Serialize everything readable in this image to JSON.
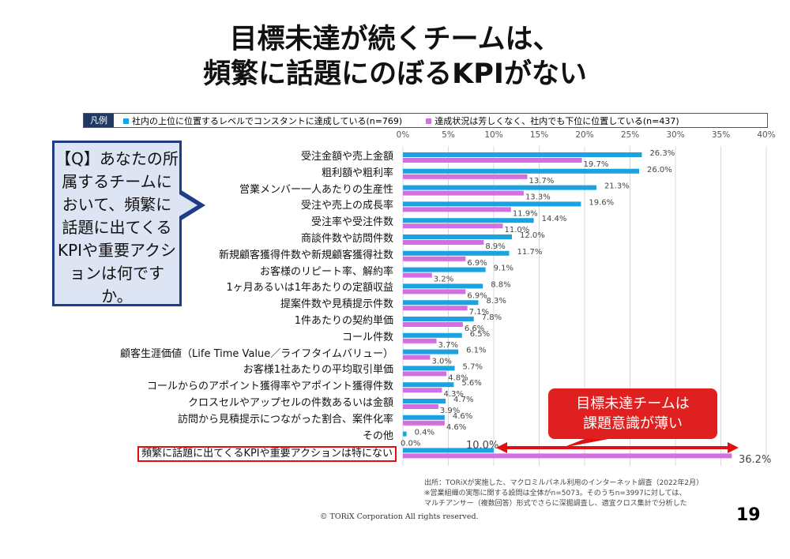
{
  "title": {
    "line1": "目標未達が続くチームは、",
    "line2": "頻繁に話題にのぼるKPIがない"
  },
  "legend": {
    "label": "凡例",
    "series1": "社内の上位に位置するレベルでコンスタントに達成している(n=769)",
    "series2": "達成状況は芳しくなく、社内でも下位に位置している(n=437)"
  },
  "callout": "【Q】あなたの所属するチームにおいて、頻繁に話題に出てくるKPIや重要アクションは何ですか。",
  "annotation": {
    "line1": "目標未達チームは",
    "line2": "課題意識が薄い"
  },
  "note": {
    "line1": "出所：TORiXが実施した、マクロミルパネル利用のインターネット調査（2022年2月）",
    "line2": "※営業組織の実態に関する設問は全体がn=5073。そのうちn=3997に対しては、",
    "line3": "マルチアンサー（複数回答）形式でさらに深掘調査し、適宜クロス集計で分析した"
  },
  "copyright": "© TORiX Corporation All rights reserved.",
  "page_number": "19",
  "chart_data": {
    "type": "bar",
    "orientation": "horizontal",
    "xlim": [
      0,
      40
    ],
    "ticks": [
      "0%",
      "5%",
      "10%",
      "15%",
      "20%",
      "25%",
      "30%",
      "35%",
      "40%"
    ],
    "categories": [
      "受注金額や売上金額",
      "粗利額や粗利率",
      "営業メンバー一人あたりの生産性",
      "受注や売上の成長率",
      "受注率や受注件数",
      "商談件数や訪問件数",
      "新規顧客獲得件数や新規顧客獲得社数",
      "お客様のリピート率、解約率",
      "1ヶ月あるいは1年あたりの定額収益",
      "提案件数や見積提示件数",
      "1件あたりの契約単価",
      "コール件数",
      "顧客生涯価値（Life Time Value／ライフタイムバリュー）",
      "お客様1社あたりの平均取引単価",
      "コールからのアポイント獲得率やアポイント獲得件数",
      "クロスセルやアップセルの件数あるいは金額",
      "訪問から見積提示につながった割合、案件化率",
      "その他",
      "頻繁に話題に出てくるKPIや重要アクションは特にない"
    ],
    "series": [
      {
        "name": "社内の上位に位置するレベルでコンスタントに達成している(n=769)",
        "color": "#1aa3e0",
        "values": [
          26.3,
          26.0,
          21.3,
          19.6,
          14.4,
          12.0,
          11.7,
          9.1,
          8.8,
          8.3,
          7.8,
          6.5,
          6.1,
          5.7,
          5.6,
          4.7,
          4.6,
          0.4,
          10.0
        ]
      },
      {
        "name": "達成状況は芳しくなく、社内でも下位に位置している(n=437)",
        "color": "#d36fe0",
        "values": [
          19.7,
          13.7,
          13.3,
          11.9,
          11.0,
          8.9,
          6.9,
          3.2,
          6.9,
          7.1,
          6.6,
          3.7,
          3.0,
          4.8,
          4.3,
          3.9,
          4.6,
          0.0,
          36.2
        ]
      }
    ]
  }
}
